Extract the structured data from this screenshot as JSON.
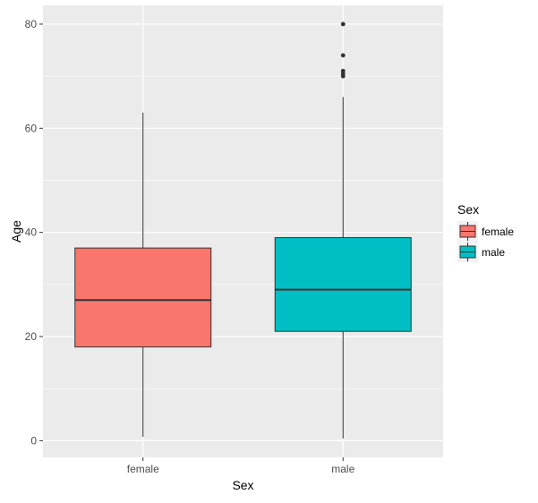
{
  "chart_data": {
    "type": "boxplot",
    "xlabel": "Sex",
    "ylabel": "Age",
    "categories": [
      "female",
      "male"
    ],
    "ylim": [
      -3.2,
      83.6
    ],
    "yticks": [
      0,
      20,
      40,
      60,
      80
    ],
    "grid": true,
    "boxes": [
      {
        "category": "female",
        "whisker_low": 0.75,
        "q1": 18,
        "median": 27,
        "q3": 37,
        "whisker_high": 63,
        "outliers": [],
        "color": "#F8766D"
      },
      {
        "category": "male",
        "whisker_low": 0.42,
        "q1": 21,
        "median": 29,
        "q3": 39,
        "whisker_high": 66,
        "outliers": [
          70,
          70.5,
          71,
          74,
          80
        ],
        "color": "#00BFC4"
      }
    ],
    "legend": {
      "title": "Sex",
      "position": "right",
      "items": [
        {
          "label": "female",
          "color": "#F8766D"
        },
        {
          "label": "male",
          "color": "#00BFC4"
        }
      ]
    }
  },
  "colors": {
    "panel_background": "#EBEBEB",
    "grid": "#FFFFFF",
    "outline": "#333333"
  }
}
